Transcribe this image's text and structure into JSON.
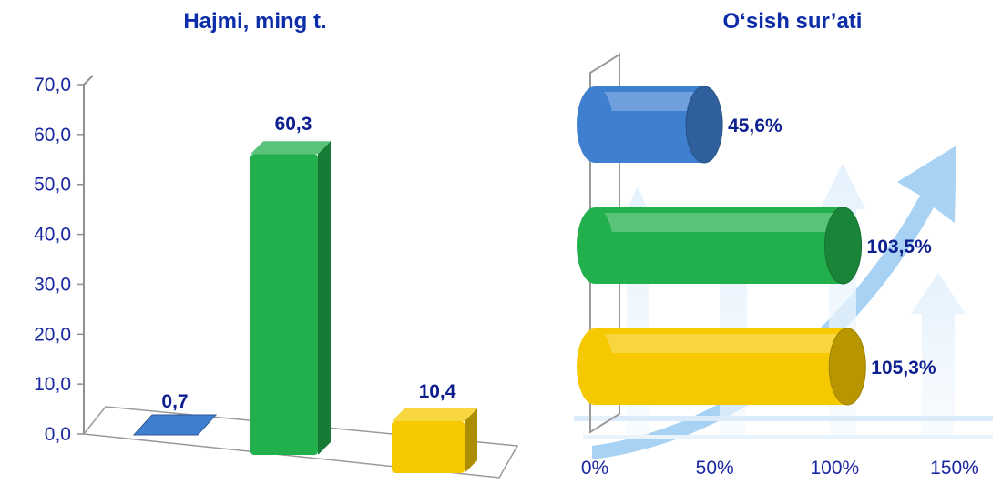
{
  "chart_data": [
    {
      "type": "bar",
      "title": "Hajmi, ming t.",
      "categories": [
        "",
        "",
        ""
      ],
      "values": [
        0.7,
        60.3,
        10.4
      ],
      "value_labels": [
        "0,7",
        "60,3",
        "10,4"
      ],
      "colors": [
        "#3f7fd0",
        "#22b04c",
        "#f5c800"
      ],
      "yticks": [
        "0,0",
        "10,0",
        "20,0",
        "30,0",
        "40,0",
        "50,0",
        "60,0",
        "70,0"
      ],
      "ylim": [
        0,
        70
      ],
      "grid": false
    },
    {
      "type": "bar",
      "orientation": "horizontal",
      "title": "O‘sish sur’ati",
      "categories": [
        "",
        "",
        ""
      ],
      "values": [
        45.6,
        103.5,
        105.3
      ],
      "value_labels": [
        "45,6%",
        "103,5%",
        "105,3%"
      ],
      "colors": [
        "#3f7fd0",
        "#22b04c",
        "#f5c800"
      ],
      "xticks": [
        "0%",
        "50%",
        "100%",
        "150%"
      ],
      "xlim": [
        0,
        150
      ],
      "grid": false
    }
  ]
}
